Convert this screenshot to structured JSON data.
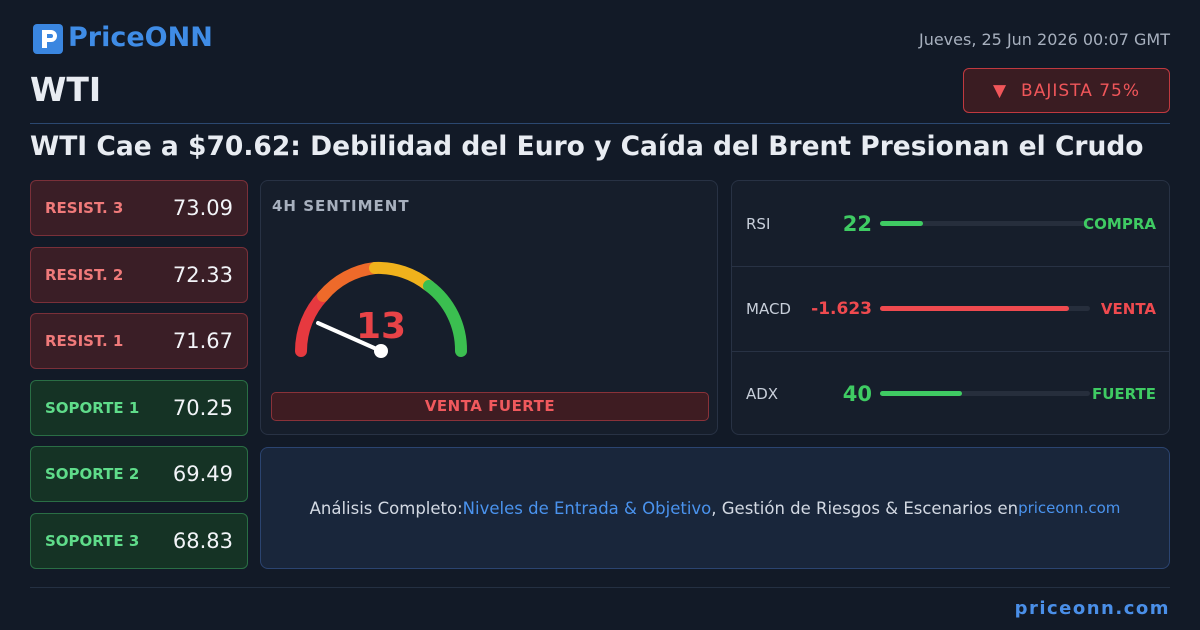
{
  "header": {
    "logo": "PriceONN",
    "date": "Jueves, 25 Jun 2026 00:07 GMT",
    "symbol": "WTI",
    "badge_icon": "▼",
    "badge": "BAJISTA 75%",
    "headline": "WTI Cae a $70.62: Debilidad del Euro y Caída del Brent Presionan el Crudo"
  },
  "levels": [
    {
      "label": "RESIST. 3",
      "value": 73.09
    },
    {
      "label": "RESIST. 2",
      "value": 72.33
    },
    {
      "label": "RESIST. 1",
      "value": 71.67
    },
    {
      "label": "SOPORTE 1",
      "value": 70.25
    },
    {
      "label": "SOPORTE 2",
      "value": 69.49
    },
    {
      "label": "SOPORTE 3",
      "value": 68.83
    }
  ],
  "sentiment": {
    "title": "4H SENTIMENT",
    "value": 13,
    "verdict": "VENTA FUERTE"
  },
  "indicators": [
    {
      "name": "RSI",
      "value": 22,
      "signal": "COMPRA"
    },
    {
      "name": "MACD",
      "value": -1.623,
      "signal": "VENTA"
    },
    {
      "name": "ADX",
      "value": 40,
      "signal": "FUERTE"
    }
  ],
  "banner": {
    "lead": "Análisis Completo:",
    "link": "Niveles de Entrada & Objetivo",
    "middle": ", Gestión de Riesgos & Escenarios en",
    "site": "priceonn.com"
  },
  "footer": {
    "site": "priceonn.com"
  }
}
